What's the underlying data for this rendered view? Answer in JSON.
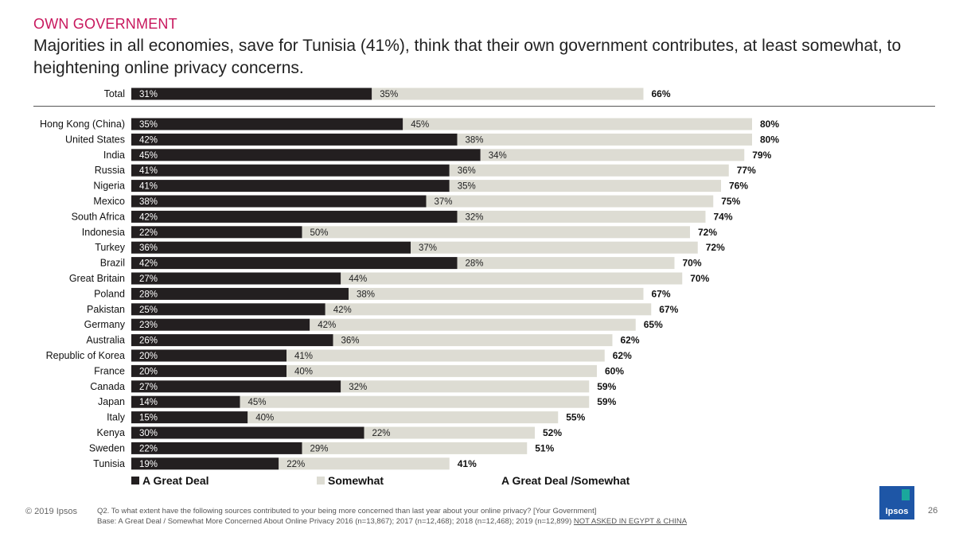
{
  "header": {
    "kicker": "OWN GOVERNMENT",
    "headline": "Majorities in all economies, save for Tunisia (41%), think that their own government contributes, at least somewhat, to heightening online privacy concerns."
  },
  "colors": {
    "great_deal": "#231f20",
    "somewhat": "#dddcd3",
    "kicker": "#c8175d",
    "divider": "#555555"
  },
  "chart_data": {
    "type": "bar",
    "orientation": "horizontal",
    "stacked": true,
    "total": {
      "category": "Total",
      "great_deal": 31,
      "somewhat": 35,
      "combined": 66
    },
    "categories": [
      "Hong Kong (China)",
      "United States",
      "India",
      "Russia",
      "Nigeria",
      "Mexico",
      "South Africa",
      "Indonesia",
      "Turkey",
      "Brazil",
      "Great Britain",
      "Poland",
      "Pakistan",
      "Germany",
      "Australia",
      "Republic of Korea",
      "France",
      "Canada",
      "Japan",
      "Italy",
      "Kenya",
      "Sweden",
      "Tunisia"
    ],
    "series": [
      {
        "name": "A Great Deal",
        "values": [
          35,
          42,
          45,
          41,
          41,
          38,
          42,
          22,
          36,
          42,
          27,
          28,
          25,
          23,
          26,
          20,
          20,
          27,
          14,
          15,
          30,
          22,
          19
        ]
      },
      {
        "name": "Somewhat",
        "values": [
          45,
          38,
          34,
          36,
          35,
          37,
          32,
          50,
          37,
          28,
          44,
          38,
          42,
          42,
          36,
          41,
          40,
          32,
          45,
          40,
          22,
          29,
          22
        ]
      }
    ],
    "combined_label": "A Great Deal /Somewhat",
    "combined": [
      80,
      80,
      79,
      77,
      76,
      75,
      74,
      72,
      72,
      70,
      70,
      67,
      67,
      65,
      62,
      62,
      60,
      59,
      59,
      55,
      52,
      51,
      41
    ],
    "xlim": [
      0,
      100
    ]
  },
  "legend": {
    "great_deal": "A Great Deal",
    "somewhat": "Somewhat",
    "combined": "A Great Deal /Somewhat"
  },
  "footer": {
    "copyright": "© 2019 Ipsos",
    "question": "Q2. To what extent have the following sources contributed to your being more concerned than last year about your online privacy? [Your Government]",
    "base": "Base: A Great Deal / Somewhat More Concerned About Online Privacy 2016 (n=13,867); 2017 (n=12,468); 2018 (n=12,468); 2019 (n=12,899)",
    "note": "NOT ASKED IN EGYPT & CHINA",
    "page": "26",
    "logo_text": "Ipsos"
  }
}
